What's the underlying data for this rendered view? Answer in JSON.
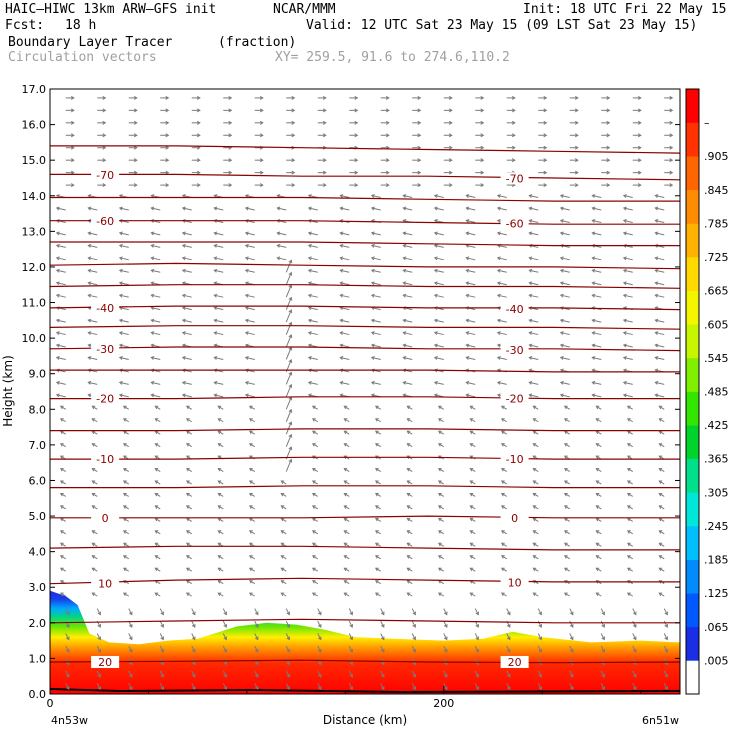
{
  "header": {
    "model": "HAIC–HIWC 13km ARW–GFS init",
    "org": "NCAR/MMM",
    "init": "Init: 18 UTC Fri 22 May 15",
    "fcst_label": "Fcst:",
    "fcst_value": "18 h",
    "valid": "Valid: 12 UTC Sat 23 May 15 (09 LST Sat 23 May 15)",
    "field": "Boundary Layer Tracer",
    "field_units": "(fraction)",
    "vectors": "Circulation vectors",
    "xy": "XY= 259.5, 91.6 to 274.6,110.2"
  },
  "chart_data": {
    "type": "cross-section",
    "xlabel": "Distance (km)",
    "ylabel": "Height (km)",
    "xlim": [
      0,
      320
    ],
    "ylim": [
      0,
      17
    ],
    "x_ticks": [
      {
        "v": 0,
        "label": "0"
      },
      {
        "v": 200,
        "label": "200"
      }
    ],
    "x_endpoints": {
      "left": "4n53w",
      "right": "6n51w"
    },
    "y_ticks": [
      "0.0",
      "1.0",
      "2.0",
      "3.0",
      "4.0",
      "5.0",
      "6.0",
      "7.0",
      "8.0",
      "9.0",
      "10.0",
      "11.0",
      "12.0",
      "13.0",
      "14.0",
      "15.0",
      "16.0",
      "17.0"
    ],
    "colorbar": {
      "labels": [
        ".005",
        ".065",
        ".125",
        ".185",
        ".245",
        ".305",
        ".365",
        ".425",
        ".485",
        ".545",
        ".605",
        ".665",
        ".725",
        ".785",
        ".845",
        ".905",
        "–"
      ],
      "colors": [
        "#ffffff",
        "#1a2ee6",
        "#0059ff",
        "#008cff",
        "#00bfff",
        "#00e6d9",
        "#00e08c",
        "#00d42b",
        "#33e600",
        "#80f000",
        "#c8f500",
        "#f5f500",
        "#ffd900",
        "#ffb300",
        "#ff8c00",
        "#ff6600",
        "#ff3300",
        "#ff0000"
      ]
    },
    "tracer_top_km": [
      [
        0,
        2.9
      ],
      [
        8,
        2.75
      ],
      [
        14,
        2.5
      ],
      [
        17,
        2.1
      ],
      [
        20,
        1.7
      ],
      [
        30,
        1.45
      ],
      [
        45,
        1.4
      ],
      [
        60,
        1.5
      ],
      [
        75,
        1.55
      ],
      [
        95,
        1.9
      ],
      [
        110,
        2.0
      ],
      [
        125,
        1.95
      ],
      [
        140,
        1.8
      ],
      [
        155,
        1.6
      ],
      [
        175,
        1.55
      ],
      [
        200,
        1.5
      ],
      [
        220,
        1.55
      ],
      [
        235,
        1.75
      ],
      [
        250,
        1.6
      ],
      [
        275,
        1.45
      ],
      [
        300,
        1.5
      ],
      [
        320,
        1.45
      ]
    ],
    "temperature_contours": {
      "units": "C",
      "lines": [
        {
          "label": "20",
          "y": [
            0.9,
            0.92,
            0.95,
            0.9,
            0.88,
            0.9
          ]
        },
        {
          "y": [
            2.0,
            2.05,
            2.1,
            2.05,
            2.0,
            2.0
          ]
        },
        {
          "label": "10",
          "y": [
            3.1,
            3.2,
            3.25,
            3.2,
            3.15,
            3.15
          ]
        },
        {
          "y": [
            4.1,
            4.15,
            4.15,
            4.1,
            4.05,
            4.05
          ]
        },
        {
          "label": "0",
          "y": [
            4.95,
            4.95,
            4.95,
            5.0,
            4.95,
            4.95
          ]
        },
        {
          "y": [
            5.8,
            5.8,
            5.85,
            5.85,
            5.8,
            5.8
          ]
        },
        {
          "label": "-10",
          "y": [
            6.6,
            6.6,
            6.65,
            6.65,
            6.6,
            6.6
          ]
        },
        {
          "y": [
            7.4,
            7.4,
            7.45,
            7.45,
            7.4,
            7.4
          ]
        },
        {
          "label": "-20",
          "y": [
            8.3,
            8.3,
            8.35,
            8.35,
            8.3,
            8.3
          ]
        },
        {
          "y": [
            9.1,
            9.1,
            9.1,
            9.1,
            9.05,
            9.05
          ]
        },
        {
          "label": "-30",
          "y": [
            9.7,
            9.75,
            9.75,
            9.7,
            9.7,
            9.65
          ]
        },
        {
          "y": [
            10.3,
            10.35,
            10.35,
            10.3,
            10.3,
            10.25
          ]
        },
        {
          "label": "-40",
          "y": [
            10.85,
            10.9,
            10.9,
            10.85,
            10.85,
            10.8
          ]
        },
        {
          "y": [
            11.45,
            11.5,
            11.5,
            11.45,
            11.45,
            11.4
          ]
        },
        {
          "y": [
            12.05,
            12.1,
            12.05,
            12.0,
            12.0,
            11.95
          ]
        },
        {
          "y": [
            12.7,
            12.7,
            12.7,
            12.65,
            12.6,
            12.6
          ]
        },
        {
          "label": "-60",
          "y": [
            13.3,
            13.3,
            13.3,
            13.25,
            13.2,
            13.2
          ]
        },
        {
          "y": [
            13.95,
            13.95,
            13.95,
            13.9,
            13.85,
            13.85
          ]
        },
        {
          "label": "-70",
          "y": [
            14.6,
            14.6,
            14.55,
            14.55,
            14.5,
            14.45
          ]
        },
        {
          "y": [
            15.4,
            15.4,
            15.35,
            15.3,
            15.25,
            15.2
          ]
        }
      ],
      "x": [
        0,
        64,
        128,
        192,
        256,
        320
      ]
    }
  }
}
